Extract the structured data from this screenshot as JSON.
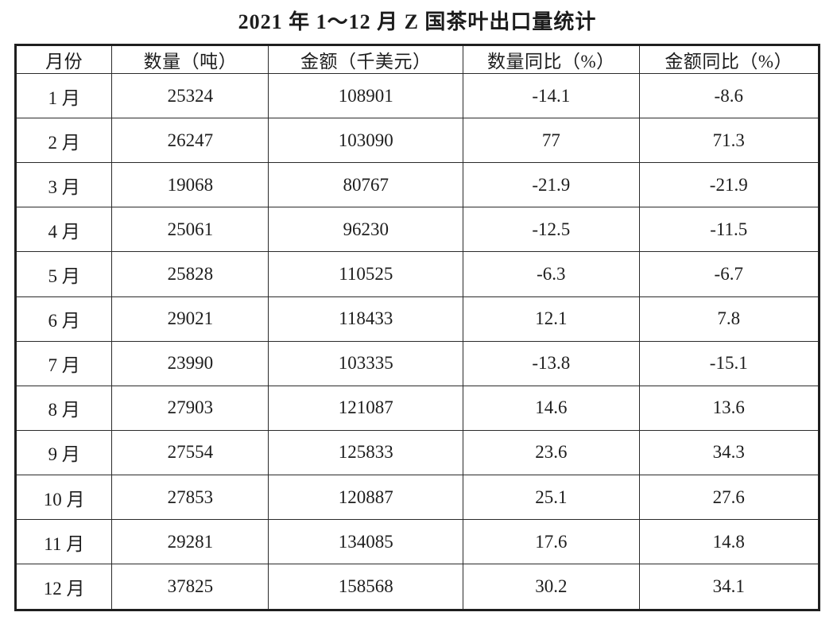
{
  "page": {
    "background": "#ffffff",
    "text_color": "#1d1d1d",
    "border_color": "#1f1f1f"
  },
  "title": "2021 年 1～12 月 Z 国茶叶出口量统计",
  "chart_data": {
    "type": "table",
    "title": "2021 年 1～12 月 Z 国茶叶出口量统计",
    "columns": [
      "月份",
      "数量（吨）",
      "金额（千美元）",
      "数量同比（%）",
      "金额同比（%）"
    ],
    "rows": [
      [
        "1 月",
        "25324",
        "108901",
        "-14.1",
        "-8.6"
      ],
      [
        "2 月",
        "26247",
        "103090",
        "77",
        "71.3"
      ],
      [
        "3 月",
        "19068",
        "80767",
        "-21.9",
        "-21.9"
      ],
      [
        "4 月",
        "25061",
        "96230",
        "-12.5",
        "-11.5"
      ],
      [
        "5 月",
        "25828",
        "110525",
        "-6.3",
        "-6.7"
      ],
      [
        "6 月",
        "29021",
        "118433",
        "12.1",
        "7.8"
      ],
      [
        "7 月",
        "23990",
        "103335",
        "-13.8",
        "-15.1"
      ],
      [
        "8 月",
        "27903",
        "121087",
        "14.6",
        "13.6"
      ],
      [
        "9 月",
        "27554",
        "125833",
        "23.6",
        "34.3"
      ],
      [
        "10 月",
        "27853",
        "120887",
        "25.1",
        "27.6"
      ],
      [
        "11 月",
        "29281",
        "134085",
        "17.6",
        "14.8"
      ],
      [
        "12 月",
        "37825",
        "158568",
        "30.2",
        "34.1"
      ]
    ],
    "categories": [
      "1 月",
      "2 月",
      "3 月",
      "4 月",
      "5 月",
      "6 月",
      "7 月",
      "8 月",
      "9 月",
      "10 月",
      "11 月",
      "12 月"
    ],
    "series": [
      {
        "name": "数量（吨）",
        "values": [
          25324,
          26247,
          19068,
          25061,
          25828,
          29021,
          23990,
          27903,
          27554,
          27853,
          29281,
          37825
        ]
      },
      {
        "name": "金额（千美元）",
        "values": [
          108901,
          103090,
          80767,
          96230,
          110525,
          118433,
          103335,
          121087,
          125833,
          120887,
          134085,
          158568
        ]
      },
      {
        "name": "数量同比（%）",
        "values": [
          -14.1,
          77,
          -21.9,
          -12.5,
          -6.3,
          12.1,
          -13.8,
          14.6,
          23.6,
          25.1,
          17.6,
          30.2
        ]
      },
      {
        "name": "金额同比（%）",
        "values": [
          -8.6,
          71.3,
          -21.9,
          -11.5,
          -6.7,
          7.8,
          -15.1,
          13.6,
          34.3,
          27.6,
          14.8,
          34.1
        ]
      }
    ],
    "layout": {
      "grid": "full-borders",
      "header_row": true,
      "legend_position": "none"
    }
  }
}
